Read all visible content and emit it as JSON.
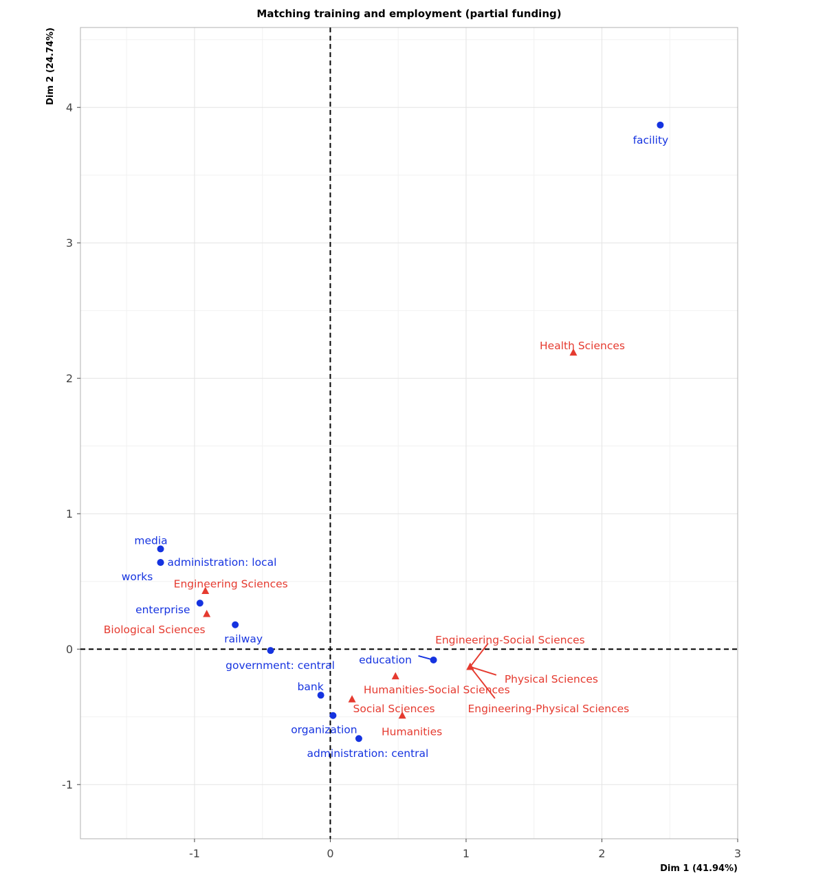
{
  "chart_data": {
    "type": "scatter",
    "title": "Matching training and employment (partial funding)",
    "xlabel": "Dim 1 (41.94%)",
    "ylabel": "Dim 2 (24.74%)",
    "xlim": [
      -1.84,
      3.0
    ],
    "ylim": [
      -1.4,
      4.59
    ],
    "x_ticks": [
      -1,
      0,
      1,
      2,
      3
    ],
    "y_ticks": [
      -1,
      0,
      1,
      2,
      3,
      4
    ],
    "grid": true,
    "reference_lines": {
      "x": 0,
      "y": 0,
      "style": "dashed"
    },
    "colors": {
      "employment": "#1533e0",
      "training": "#e53a2f"
    },
    "series": [
      {
        "marker": "circle",
        "color": "#1533e0",
        "points": [
          {
            "label": "facility",
            "x": 2.43,
            "y": 3.87
          },
          {
            "label": "media",
            "x": -1.25,
            "y": 0.74
          },
          {
            "label": "administration: local",
            "x": -1.25,
            "y": 0.64
          },
          {
            "label": "works",
            "x": -1.25,
            "y": 0.64
          },
          {
            "label": "enterprise",
            "x": -0.96,
            "y": 0.34
          },
          {
            "label": "railway",
            "x": -0.7,
            "y": 0.18
          },
          {
            "label": "government: central",
            "x": -0.44,
            "y": -0.01
          },
          {
            "label": "education",
            "x": 0.76,
            "y": -0.08
          },
          {
            "label": "bank",
            "x": -0.07,
            "y": -0.34
          },
          {
            "label": "organization",
            "x": 0.02,
            "y": -0.49
          },
          {
            "label": "administration: central",
            "x": 0.21,
            "y": -0.66
          }
        ]
      },
      {
        "marker": "triangle",
        "color": "#e53a2f",
        "points": [
          {
            "label": "Health Sciences",
            "x": 1.79,
            "y": 2.19
          },
          {
            "label": "Engineering Sciences",
            "x": -0.92,
            "y": 0.43
          },
          {
            "label": "Biological Sciences",
            "x": -0.91,
            "y": 0.26
          },
          {
            "label": "Engineering-Social Sciences",
            "x": 1.03,
            "y": -0.13
          },
          {
            "label": "Physical Sciences",
            "x": 1.03,
            "y": -0.13
          },
          {
            "label": "Engineering-Physical Sciences",
            "x": 1.03,
            "y": -0.13
          },
          {
            "label": "Humanities-Social Sciences",
            "x": 0.48,
            "y": -0.2
          },
          {
            "label": "Social Sciences",
            "x": 0.16,
            "y": -0.37
          },
          {
            "label": "Humanities",
            "x": 0.53,
            "y": -0.49
          }
        ]
      }
    ]
  }
}
